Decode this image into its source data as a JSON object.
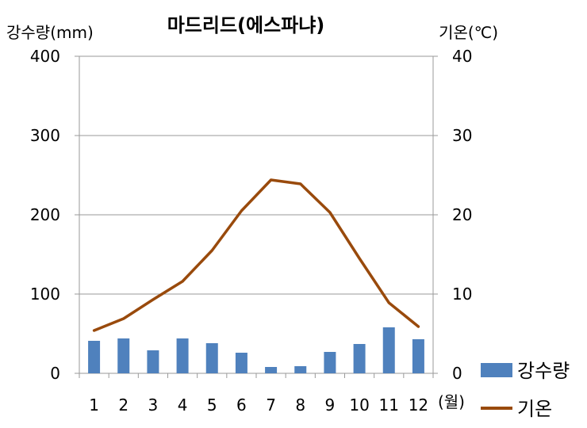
{
  "chart_data": {
    "type": "bar+line",
    "title": "마드리드(에스파냐)",
    "y_left_label": "강수량(mm)",
    "y_right_label": "기온(℃)",
    "x_unit": "(월)",
    "categories": [
      "1",
      "2",
      "3",
      "4",
      "5",
      "6",
      "7",
      "8",
      "9",
      "10",
      "11",
      "12"
    ],
    "y_left_ticks": [
      "0",
      "100",
      "200",
      "300",
      "400"
    ],
    "y_right_ticks": [
      "0",
      "10",
      "20",
      "30",
      "40"
    ],
    "y_left_lim": [
      0,
      400
    ],
    "y_right_lim": [
      0,
      40
    ],
    "grid": true,
    "legend_position": "bottom-right",
    "series": [
      {
        "name": "강수량",
        "type": "bar",
        "axis": "left",
        "color": "#4F81BD",
        "values": [
          41,
          44,
          29,
          44,
          38,
          26,
          8,
          9,
          27,
          37,
          58,
          43
        ]
      },
      {
        "name": "기온",
        "type": "line",
        "axis": "right",
        "color": "#994A0C",
        "values": [
          5.4,
          6.9,
          9.3,
          11.6,
          15.5,
          20.5,
          24.4,
          23.9,
          20.3,
          14.5,
          8.9,
          5.9
        ]
      }
    ]
  }
}
